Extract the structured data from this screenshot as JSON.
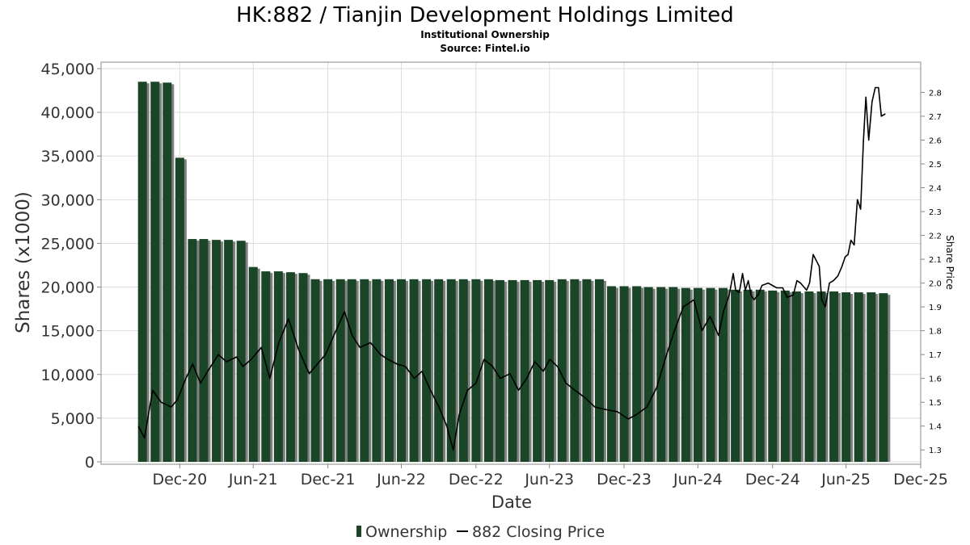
{
  "chart_data": {
    "type": "bar",
    "title": "HK:882 / Tianjin Development Holdings Limited",
    "subtitle": "Institutional Ownership",
    "source": "Source: Fintel.io",
    "xlabel": "Date",
    "ylabel": "Shares (x1000)",
    "y2label": "Share Price",
    "ylim": [
      0,
      45000
    ],
    "y2lim": [
      1.25,
      2.92
    ],
    "yticks": [
      0,
      5000,
      10000,
      15000,
      20000,
      25000,
      30000,
      35000,
      40000,
      45000
    ],
    "ytick_labels": [
      "0",
      "5,000",
      "10,000",
      "15,000",
      "20,000",
      "25,000",
      "30,000",
      "35,000",
      "40,000",
      "45,000"
    ],
    "y2ticks": [
      1.3,
      1.4,
      1.5,
      1.6,
      1.7,
      1.8,
      1.9,
      2.0,
      2.1,
      2.2,
      2.3,
      2.4,
      2.5,
      2.6,
      2.7,
      2.8
    ],
    "y2tick_labels": [
      "1.3",
      "1.4",
      "1.5",
      "1.6",
      "1.7",
      "1.8",
      "1.9",
      "2.0",
      "2.1",
      "2.2",
      "2.3",
      "2.4",
      "2.5",
      "2.6",
      "2.7",
      "2.8"
    ],
    "xlim": [
      "2020-06-20",
      "2025-12-31"
    ],
    "xticks": [
      "2020-12-31",
      "2021-06-30",
      "2021-12-31",
      "2022-06-30",
      "2022-12-31",
      "2023-06-30",
      "2023-12-31",
      "2024-06-30",
      "2024-12-31",
      "2025-06-30",
      "2025-12-31"
    ],
    "xtick_labels": [
      "Dec-20",
      "Jun-21",
      "Dec-21",
      "Jun-22",
      "Dec-22",
      "Jun-23",
      "Dec-23",
      "Jun-24",
      "Dec-24",
      "Jun-25",
      "Dec-25"
    ],
    "grid": true,
    "legend_position": "bottom-center",
    "colors": {
      "bar": "#1a4527",
      "bar_shadow": "#808080",
      "line": "#000000",
      "grid": "#dddddd"
    },
    "series": [
      {
        "name": "Ownership",
        "type": "bar",
        "x": [
          "2020-09-30",
          "2020-10-31",
          "2020-11-30",
          "2020-12-31",
          "2021-01-31",
          "2021-02-28",
          "2021-03-31",
          "2021-04-30",
          "2021-05-31",
          "2021-06-30",
          "2021-07-31",
          "2021-08-31",
          "2021-09-30",
          "2021-10-31",
          "2021-11-30",
          "2021-12-31",
          "2022-01-31",
          "2022-02-28",
          "2022-03-31",
          "2022-04-30",
          "2022-05-31",
          "2022-06-30",
          "2022-07-31",
          "2022-08-31",
          "2022-09-30",
          "2022-10-31",
          "2022-11-30",
          "2022-12-31",
          "2023-01-31",
          "2023-02-28",
          "2023-03-31",
          "2023-04-30",
          "2023-05-31",
          "2023-06-30",
          "2023-07-31",
          "2023-08-31",
          "2023-09-30",
          "2023-10-31",
          "2023-11-30",
          "2023-12-31",
          "2024-01-31",
          "2024-02-29",
          "2024-03-31",
          "2024-04-30",
          "2024-05-31",
          "2024-06-30",
          "2024-07-31",
          "2024-08-31",
          "2024-09-30",
          "2024-10-31",
          "2024-11-30",
          "2024-12-31",
          "2025-01-31",
          "2025-02-28",
          "2025-03-31",
          "2025-04-30",
          "2025-05-31",
          "2025-06-30",
          "2025-07-31",
          "2025-08-31",
          "2025-09-30"
        ],
        "values": [
          43500,
          43500,
          43400,
          34800,
          25500,
          25500,
          25400,
          25400,
          25300,
          22300,
          21800,
          21800,
          21700,
          21600,
          20900,
          20900,
          20900,
          20900,
          20900,
          20900,
          20900,
          20900,
          20900,
          20900,
          20900,
          20900,
          20900,
          20900,
          20900,
          20800,
          20800,
          20800,
          20800,
          20800,
          20900,
          20900,
          20900,
          20900,
          20100,
          20100,
          20100,
          20000,
          20000,
          20000,
          19900,
          19900,
          19900,
          19900,
          19700,
          19700,
          19700,
          19600,
          19600,
          19500,
          19500,
          19500,
          19500,
          19400,
          19400,
          19400,
          19300
        ],
        "note": ""
      },
      {
        "name": "882 Closing Price",
        "type": "line",
        "points": [
          [
            "2020-09-20",
            1.4
          ],
          [
            "2020-10-05",
            1.35
          ],
          [
            "2020-10-25",
            1.55
          ],
          [
            "2020-11-15",
            1.5
          ],
          [
            "2020-12-10",
            1.48
          ],
          [
            "2020-12-25",
            1.51
          ],
          [
            "2021-01-15",
            1.6
          ],
          [
            "2021-02-01",
            1.66
          ],
          [
            "2021-02-20",
            1.58
          ],
          [
            "2021-03-10",
            1.63
          ],
          [
            "2021-04-05",
            1.7
          ],
          [
            "2021-04-25",
            1.67
          ],
          [
            "2021-05-20",
            1.69
          ],
          [
            "2021-06-05",
            1.65
          ],
          [
            "2021-06-25",
            1.68
          ],
          [
            "2021-07-20",
            1.73
          ],
          [
            "2021-08-10",
            1.6
          ],
          [
            "2021-09-01",
            1.75
          ],
          [
            "2021-09-25",
            1.85
          ],
          [
            "2021-10-20",
            1.72
          ],
          [
            "2021-11-15",
            1.62
          ],
          [
            "2021-12-10",
            1.67
          ],
          [
            "2021-12-25",
            1.7
          ],
          [
            "2022-01-20",
            1.8
          ],
          [
            "2022-02-10",
            1.88
          ],
          [
            "2022-03-01",
            1.78
          ],
          [
            "2022-03-20",
            1.73
          ],
          [
            "2022-04-15",
            1.75
          ],
          [
            "2022-05-10",
            1.7
          ],
          [
            "2022-05-28",
            1.68
          ],
          [
            "2022-06-20",
            1.66
          ],
          [
            "2022-07-10",
            1.65
          ],
          [
            "2022-08-01",
            1.6
          ],
          [
            "2022-08-20",
            1.63
          ],
          [
            "2022-09-10",
            1.55
          ],
          [
            "2022-10-01",
            1.48
          ],
          [
            "2022-10-20",
            1.4
          ],
          [
            "2022-11-05",
            1.3
          ],
          [
            "2022-11-20",
            1.45
          ],
          [
            "2022-12-10",
            1.55
          ],
          [
            "2022-12-31",
            1.58
          ],
          [
            "2023-01-20",
            1.68
          ],
          [
            "2023-02-10",
            1.65
          ],
          [
            "2023-03-01",
            1.6
          ],
          [
            "2023-03-25",
            1.62
          ],
          [
            "2023-04-15",
            1.55
          ],
          [
            "2023-05-05",
            1.6
          ],
          [
            "2023-05-25",
            1.67
          ],
          [
            "2023-06-15",
            1.63
          ],
          [
            "2023-07-01",
            1.68
          ],
          [
            "2023-07-20",
            1.65
          ],
          [
            "2023-08-10",
            1.58
          ],
          [
            "2023-09-01",
            1.55
          ],
          [
            "2023-09-25",
            1.52
          ],
          [
            "2023-10-20",
            1.48
          ],
          [
            "2023-11-15",
            1.47
          ],
          [
            "2023-12-15",
            1.46
          ],
          [
            "2024-01-10",
            1.43
          ],
          [
            "2024-02-01",
            1.45
          ],
          [
            "2024-02-25",
            1.48
          ],
          [
            "2024-03-20",
            1.56
          ],
          [
            "2024-04-10",
            1.68
          ],
          [
            "2024-05-01",
            1.79
          ],
          [
            "2024-05-25",
            1.9
          ],
          [
            "2024-06-20",
            1.93
          ],
          [
            "2024-07-10",
            1.8
          ],
          [
            "2024-07-30",
            1.86
          ],
          [
            "2024-08-20",
            1.78
          ],
          [
            "2024-09-01",
            1.88
          ],
          [
            "2024-09-15",
            1.95
          ],
          [
            "2024-09-25",
            2.04
          ],
          [
            "2024-10-01",
            1.97
          ],
          [
            "2024-10-10",
            1.96
          ],
          [
            "2024-10-18",
            2.04
          ],
          [
            "2024-10-25",
            1.97
          ],
          [
            "2024-11-01",
            2.01
          ],
          [
            "2024-11-08",
            1.95
          ],
          [
            "2024-11-15",
            1.93
          ],
          [
            "2024-11-25",
            1.95
          ],
          [
            "2024-12-05",
            1.99
          ],
          [
            "2024-12-20",
            2.0
          ],
          [
            "2025-01-10",
            1.98
          ],
          [
            "2025-01-25",
            1.98
          ],
          [
            "2025-02-05",
            1.94
          ],
          [
            "2025-02-20",
            1.95
          ],
          [
            "2025-03-01",
            2.01
          ],
          [
            "2025-03-10",
            2.0
          ],
          [
            "2025-03-25",
            1.97
          ],
          [
            "2025-04-01",
            2.0
          ],
          [
            "2025-04-10",
            2.12
          ],
          [
            "2025-04-25",
            2.07
          ],
          [
            "2025-05-01",
            1.93
          ],
          [
            "2025-05-10",
            1.9
          ],
          [
            "2025-05-20",
            2.0
          ],
          [
            "2025-05-30",
            2.01
          ],
          [
            "2025-06-10",
            2.03
          ],
          [
            "2025-06-20",
            2.07
          ],
          [
            "2025-06-28",
            2.11
          ],
          [
            "2025-07-05",
            2.12
          ],
          [
            "2025-07-12",
            2.18
          ],
          [
            "2025-07-20",
            2.16
          ],
          [
            "2025-07-28",
            2.35
          ],
          [
            "2025-08-05",
            2.31
          ],
          [
            "2025-08-12",
            2.6
          ],
          [
            "2025-08-18",
            2.78
          ],
          [
            "2025-08-25",
            2.6
          ],
          [
            "2025-09-02",
            2.76
          ],
          [
            "2025-09-10",
            2.82
          ],
          [
            "2025-09-18",
            2.82
          ],
          [
            "2025-09-25",
            2.7
          ],
          [
            "2025-10-05",
            2.71
          ]
        ]
      }
    ]
  }
}
